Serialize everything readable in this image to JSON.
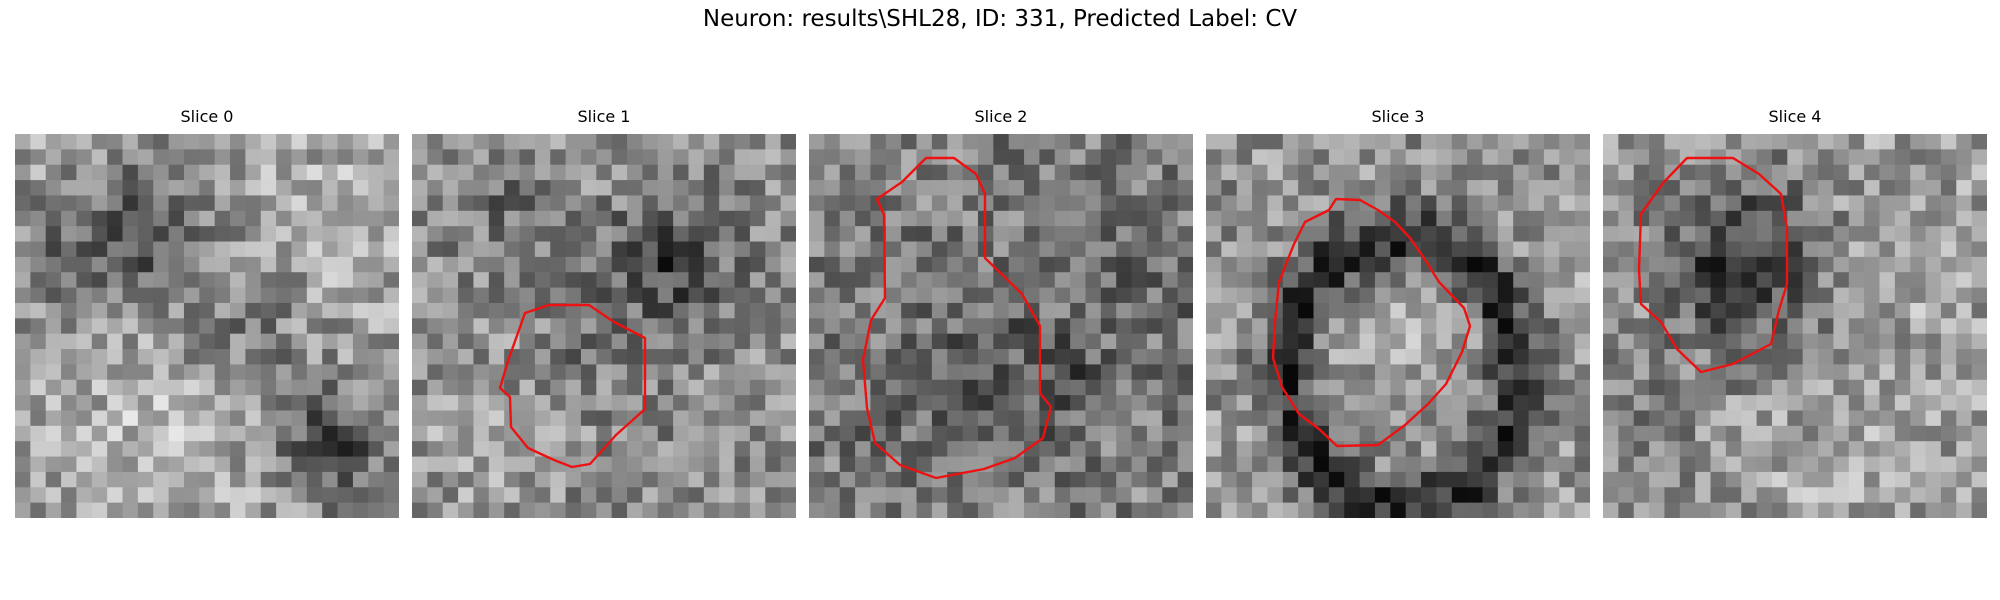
{
  "figure": {
    "title": "Neuron: results\\SHL28, ID: 331, Predicted Label: CV"
  },
  "panels": [
    {
      "title": "Slice 0",
      "has_contour": false
    },
    {
      "title": "Slice 1",
      "has_contour": true
    },
    {
      "title": "Slice 2",
      "has_contour": true
    },
    {
      "title": "Slice 3",
      "has_contour": true
    },
    {
      "title": "Slice 4",
      "has_contour": true
    }
  ],
  "colors": {
    "contour": "#ee1111",
    "background": "#ffffff"
  }
}
